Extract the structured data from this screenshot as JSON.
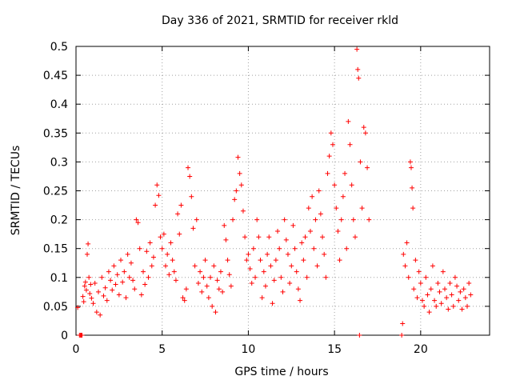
{
  "chart_data": {
    "type": "scatter",
    "title": "Day 336 of 2021, SRMTID for receiver rkld",
    "xlabel": "GPS time / hours",
    "ylabel": "SRMTID / TECUs",
    "xlim": [
      0,
      24
    ],
    "ylim": [
      0,
      0.5
    ],
    "x_ticks": [
      0,
      5,
      10,
      15,
      20
    ],
    "x_tick_labels": [
      "0",
      "5",
      "10",
      "15",
      "20"
    ],
    "y_ticks": [
      0,
      0.05,
      0.1,
      0.15,
      0.2,
      0.25,
      0.3,
      0.35,
      0.4,
      0.45,
      0.5
    ],
    "y_tick_labels": [
      "0",
      "0.05",
      "0.1",
      "0.15",
      "0.2",
      "0.25",
      "0.3",
      "0.35",
      "0.4",
      "0.45",
      "0.5"
    ],
    "grid": true,
    "marker": "+",
    "color": "#ff0000",
    "series": [
      {
        "name": "SRMTID",
        "points": [
          [
            0.1,
            0.048
          ],
          [
            0.2,
            0.0
          ],
          [
            0.25,
            0.0
          ],
          [
            0.3,
            0.0
          ],
          [
            0.35,
            0.0
          ],
          [
            0.4,
            0.067
          ],
          [
            0.45,
            0.058
          ],
          [
            0.5,
            0.085
          ],
          [
            0.55,
            0.092
          ],
          [
            0.6,
            0.078
          ],
          [
            0.65,
            0.14
          ],
          [
            0.7,
            0.158
          ],
          [
            0.75,
            0.1
          ],
          [
            0.8,
            0.072
          ],
          [
            0.85,
            0.088
          ],
          [
            0.9,
            0.064
          ],
          [
            1.0,
            0.055
          ],
          [
            1.1,
            0.09
          ],
          [
            1.2,
            0.04
          ],
          [
            1.3,
            0.075
          ],
          [
            1.4,
            0.035
          ],
          [
            1.5,
            0.1
          ],
          [
            1.6,
            0.068
          ],
          [
            1.7,
            0.082
          ],
          [
            1.8,
            0.06
          ],
          [
            1.9,
            0.11
          ],
          [
            2.0,
            0.095
          ],
          [
            2.1,
            0.078
          ],
          [
            2.2,
            0.12
          ],
          [
            2.3,
            0.088
          ],
          [
            2.4,
            0.105
          ],
          [
            2.5,
            0.07
          ],
          [
            2.6,
            0.13
          ],
          [
            2.7,
            0.092
          ],
          [
            2.8,
            0.11
          ],
          [
            2.9,
            0.065
          ],
          [
            3.0,
            0.14
          ],
          [
            3.1,
            0.1
          ],
          [
            3.2,
            0.125
          ],
          [
            3.3,
            0.095
          ],
          [
            3.4,
            0.08
          ],
          [
            3.5,
            0.2
          ],
          [
            3.6,
            0.195
          ],
          [
            3.7,
            0.15
          ],
          [
            3.8,
            0.07
          ],
          [
            3.9,
            0.11
          ],
          [
            4.0,
            0.088
          ],
          [
            4.1,
            0.145
          ],
          [
            4.2,
            0.1
          ],
          [
            4.3,
            0.16
          ],
          [
            4.4,
            0.12
          ],
          [
            4.5,
            0.135
          ],
          [
            4.6,
            0.225
          ],
          [
            4.7,
            0.26
          ],
          [
            4.8,
            0.242
          ],
          [
            4.9,
            0.17
          ],
          [
            5.0,
            0.15
          ],
          [
            5.1,
            0.175
          ],
          [
            5.2,
            0.12
          ],
          [
            5.3,
            0.14
          ],
          [
            5.4,
            0.105
          ],
          [
            5.5,
            0.16
          ],
          [
            5.6,
            0.13
          ],
          [
            5.7,
            0.11
          ],
          [
            5.8,
            0.095
          ],
          [
            5.9,
            0.21
          ],
          [
            6.0,
            0.175
          ],
          [
            6.1,
            0.225
          ],
          [
            6.2,
            0.065
          ],
          [
            6.3,
            0.06
          ],
          [
            6.4,
            0.08
          ],
          [
            6.5,
            0.29
          ],
          [
            6.6,
            0.275
          ],
          [
            6.7,
            0.24
          ],
          [
            6.8,
            0.185
          ],
          [
            6.9,
            0.12
          ],
          [
            7.0,
            0.2
          ],
          [
            7.1,
            0.09
          ],
          [
            7.2,
            0.11
          ],
          [
            7.3,
            0.075
          ],
          [
            7.4,
            0.1
          ],
          [
            7.5,
            0.13
          ],
          [
            7.6,
            0.085
          ],
          [
            7.7,
            0.065
          ],
          [
            7.8,
            0.1
          ],
          [
            7.9,
            0.05
          ],
          [
            8.0,
            0.12
          ],
          [
            8.1,
            0.04
          ],
          [
            8.2,
            0.095
          ],
          [
            8.3,
            0.08
          ],
          [
            8.4,
            0.11
          ],
          [
            8.5,
            0.075
          ],
          [
            8.6,
            0.19
          ],
          [
            8.7,
            0.165
          ],
          [
            8.8,
            0.13
          ],
          [
            8.9,
            0.105
          ],
          [
            9.0,
            0.085
          ],
          [
            9.1,
            0.2
          ],
          [
            9.2,
            0.235
          ],
          [
            9.3,
            0.25
          ],
          [
            9.4,
            0.308
          ],
          [
            9.5,
            0.28
          ],
          [
            9.6,
            0.26
          ],
          [
            9.7,
            0.215
          ],
          [
            9.8,
            0.17
          ],
          [
            9.9,
            0.13
          ],
          [
            10.0,
            0.14
          ],
          [
            10.1,
            0.115
          ],
          [
            10.2,
            0.09
          ],
          [
            10.3,
            0.15
          ],
          [
            10.4,
            0.1
          ],
          [
            10.5,
            0.2
          ],
          [
            10.6,
            0.17
          ],
          [
            10.7,
            0.13
          ],
          [
            10.8,
            0.065
          ],
          [
            10.9,
            0.11
          ],
          [
            11.0,
            0.085
          ],
          [
            11.1,
            0.14
          ],
          [
            11.2,
            0.17
          ],
          [
            11.3,
            0.12
          ],
          [
            11.4,
            0.055
          ],
          [
            11.5,
            0.095
          ],
          [
            11.6,
            0.13
          ],
          [
            11.7,
            0.18
          ],
          [
            11.8,
            0.15
          ],
          [
            11.9,
            0.1
          ],
          [
            12.0,
            0.075
          ],
          [
            12.1,
            0.2
          ],
          [
            12.2,
            0.165
          ],
          [
            12.3,
            0.14
          ],
          [
            12.4,
            0.09
          ],
          [
            12.5,
            0.12
          ],
          [
            12.6,
            0.19
          ],
          [
            12.7,
            0.15
          ],
          [
            12.8,
            0.11
          ],
          [
            12.9,
            0.08
          ],
          [
            13.0,
            0.06
          ],
          [
            13.1,
            0.16
          ],
          [
            13.2,
            0.13
          ],
          [
            13.3,
            0.17
          ],
          [
            13.4,
            0.1
          ],
          [
            13.5,
            0.22
          ],
          [
            13.6,
            0.18
          ],
          [
            13.7,
            0.24
          ],
          [
            13.8,
            0.15
          ],
          [
            13.9,
            0.2
          ],
          [
            14.0,
            0.12
          ],
          [
            14.1,
            0.25
          ],
          [
            14.2,
            0.21
          ],
          [
            14.3,
            0.17
          ],
          [
            14.4,
            0.14
          ],
          [
            14.5,
            0.1
          ],
          [
            14.6,
            0.28
          ],
          [
            14.7,
            0.31
          ],
          [
            14.8,
            0.35
          ],
          [
            14.9,
            0.33
          ],
          [
            15.0,
            0.26
          ],
          [
            15.1,
            0.22
          ],
          [
            15.2,
            0.18
          ],
          [
            15.3,
            0.13
          ],
          [
            15.4,
            0.2
          ],
          [
            15.5,
            0.24
          ],
          [
            15.6,
            0.28
          ],
          [
            15.7,
            0.15
          ],
          [
            15.8,
            0.37
          ],
          [
            15.9,
            0.33
          ],
          [
            16.0,
            0.26
          ],
          [
            16.1,
            0.2
          ],
          [
            16.2,
            0.17
          ],
          [
            16.3,
            0.495
          ],
          [
            16.35,
            0.46
          ],
          [
            16.4,
            0.445
          ],
          [
            16.45,
            0.0
          ],
          [
            16.5,
            0.3
          ],
          [
            16.6,
            0.22
          ],
          [
            16.7,
            0.36
          ],
          [
            16.8,
            0.35
          ],
          [
            16.9,
            0.29
          ],
          [
            17.0,
            0.2
          ],
          [
            18.9,
            0.0
          ],
          [
            18.95,
            0.02
          ],
          [
            19.0,
            0.14
          ],
          [
            19.1,
            0.12
          ],
          [
            19.2,
            0.16
          ],
          [
            19.3,
            0.1
          ],
          [
            19.4,
            0.3
          ],
          [
            19.45,
            0.29
          ],
          [
            19.5,
            0.255
          ],
          [
            19.55,
            0.22
          ],
          [
            19.6,
            0.08
          ],
          [
            19.7,
            0.13
          ],
          [
            19.8,
            0.065
          ],
          [
            19.9,
            0.11
          ],
          [
            20.0,
            0.09
          ],
          [
            20.1,
            0.06
          ],
          [
            20.2,
            0.05
          ],
          [
            20.3,
            0.1
          ],
          [
            20.4,
            0.07
          ],
          [
            20.5,
            0.04
          ],
          [
            20.6,
            0.08
          ],
          [
            20.7,
            0.12
          ],
          [
            20.8,
            0.06
          ],
          [
            20.9,
            0.05
          ],
          [
            21.0,
            0.09
          ],
          [
            21.1,
            0.075
          ],
          [
            21.2,
            0.055
          ],
          [
            21.3,
            0.11
          ],
          [
            21.4,
            0.08
          ],
          [
            21.5,
            0.065
          ],
          [
            21.6,
            0.045
          ],
          [
            21.7,
            0.09
          ],
          [
            21.8,
            0.07
          ],
          [
            21.9,
            0.05
          ],
          [
            22.0,
            0.1
          ],
          [
            22.1,
            0.085
          ],
          [
            22.2,
            0.06
          ],
          [
            22.3,
            0.075
          ],
          [
            22.4,
            0.045
          ],
          [
            22.5,
            0.08
          ],
          [
            22.6,
            0.065
          ],
          [
            22.7,
            0.05
          ],
          [
            22.8,
            0.09
          ],
          [
            22.9,
            0.07
          ]
        ]
      }
    ]
  }
}
